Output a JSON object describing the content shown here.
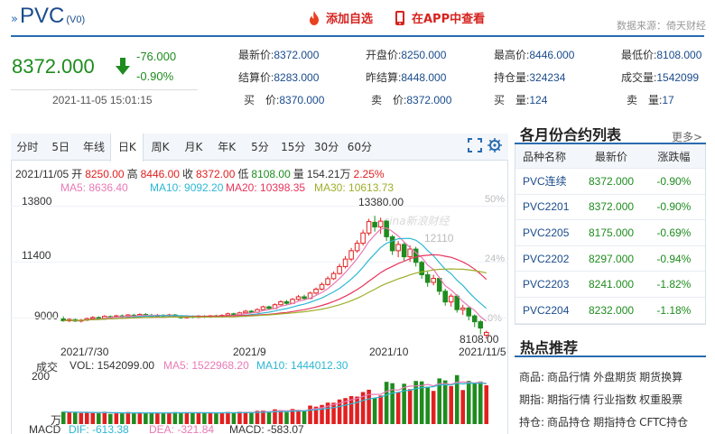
{
  "header": {
    "title": "PVC",
    "title_sub": "(V0)",
    "add_watch_label": "添加自选",
    "app_label": "在APP中查看",
    "source": "数据来源：倚天财经"
  },
  "quote": {
    "price": "8372.000",
    "change": "-76.000",
    "change_pct": "-0.90%",
    "datetime": "2021-11-05 15:01:15",
    "cells": [
      {
        "label": "最新价:",
        "value": "8372.000"
      },
      {
        "label": "开盘价:",
        "value": "8250.000"
      },
      {
        "label": "最高价:",
        "value": "8446.000"
      },
      {
        "label": "最低价:",
        "value": "8108.000"
      },
      {
        "label": "结算价:",
        "value": "8283.000"
      },
      {
        "label": "昨结算:",
        "value": "8448.000"
      },
      {
        "label": "持仓量:",
        "value": "324234"
      },
      {
        "label": "成交量:",
        "value": "1542099"
      },
      {
        "label": "买　价:",
        "value": "8370.000"
      },
      {
        "label": "卖　价:",
        "value": "8372.000"
      },
      {
        "label": "买　量:",
        "value": "124"
      },
      {
        "label": "卖　量:",
        "value": "17"
      }
    ]
  },
  "tabs": [
    "分时",
    "5日",
    "年线",
    "日K",
    "周K",
    "月K",
    "年K",
    "5分",
    "15分",
    "30分",
    "60分"
  ],
  "chart_info": {
    "date": "2021/11/05",
    "open_label": "开",
    "open": "8250.00",
    "high_label": "高",
    "high": "8446.00",
    "close_label": "收",
    "close": "8372.00",
    "low_label": "低",
    "low": "8108.00",
    "vol_label": "量",
    "vol": "154.21万",
    "pct": "2.25%",
    "ma5": "MA5: 8636.40",
    "ma10": "MA10: 9092.20",
    "ma20": "MA20: 10398.35",
    "ma30": "MA30: 10613.73",
    "y_ticks": [
      "13800",
      "11400",
      "9000"
    ],
    "pct_ticks": [
      "50%",
      "24%",
      "0%"
    ],
    "high_mark": "13380.00",
    "low_mark": "8108.00",
    "mid_mark": "12110",
    "watermark": "sina新浪财经",
    "dates": [
      "2021/7/30",
      "2021/9",
      "2021/10",
      "2021/11/5"
    ],
    "vol_row": {
      "label": "成交",
      "vol": "VOL: 1542099.00",
      "ma5": "MA5: 1522968.20",
      "ma10": "MA10: 1444012.30"
    },
    "vol_ticks": [
      "200",
      "万"
    ],
    "macd_row": {
      "label": "MACD",
      "dif": "DIF: -613.38",
      "dea": "DEA: -321.84",
      "macd": "MACD: -583.07"
    }
  },
  "chart_data": {
    "type": "candlestick",
    "ylim": [
      8000,
      14200
    ],
    "candles": [
      [
        8950,
        8870,
        9060,
        8830
      ],
      [
        8870,
        8930,
        8980,
        8810
      ],
      [
        8920,
        8860,
        8970,
        8820
      ],
      [
        8860,
        8900,
        8950,
        8800
      ],
      [
        8900,
        8960,
        9010,
        8860
      ],
      [
        8960,
        9010,
        9070,
        8920
      ],
      [
        9010,
        8980,
        9060,
        8930
      ],
      [
        8980,
        9060,
        9110,
        8940
      ],
      [
        9050,
        9040,
        9100,
        8990
      ],
      [
        9040,
        9080,
        9130,
        9000
      ],
      [
        9080,
        9050,
        9140,
        9010
      ],
      [
        9050,
        9120,
        9160,
        9020
      ],
      [
        9110,
        9080,
        9170,
        9040
      ],
      [
        9080,
        9140,
        9190,
        9050
      ],
      [
        9140,
        9110,
        9200,
        9070
      ],
      [
        9110,
        9060,
        9170,
        9020
      ],
      [
        9060,
        9110,
        9160,
        9010
      ],
      [
        9110,
        9080,
        9150,
        9040
      ],
      [
        9080,
        9120,
        9170,
        9040
      ],
      [
        9120,
        9050,
        9160,
        9010
      ],
      [
        9050,
        9000,
        9090,
        8960
      ],
      [
        9000,
        9060,
        9110,
        8970
      ],
      [
        9060,
        9020,
        9100,
        8980
      ],
      [
        9020,
        9070,
        9120,
        8980
      ],
      [
        9070,
        9030,
        9110,
        8990
      ],
      [
        9030,
        9080,
        9120,
        9000
      ],
      [
        9080,
        9050,
        9130,
        9010
      ],
      [
        9050,
        9100,
        9150,
        9010
      ],
      [
        9100,
        9170,
        9220,
        9060
      ],
      [
        9170,
        9130,
        9220,
        9080
      ],
      [
        9130,
        9210,
        9260,
        9100
      ],
      [
        9210,
        9280,
        9340,
        9180
      ],
      [
        9280,
        9240,
        9330,
        9190
      ],
      [
        9240,
        9350,
        9410,
        9200
      ],
      [
        9350,
        9470,
        9520,
        9300
      ],
      [
        9470,
        9400,
        9520,
        9350
      ],
      [
        9400,
        9560,
        9620,
        9370
      ],
      [
        9560,
        9690,
        9750,
        9520
      ],
      [
        9690,
        9620,
        9760,
        9560
      ],
      [
        9620,
        9790,
        9850,
        9600
      ],
      [
        9790,
        9900,
        9980,
        9740
      ],
      [
        9900,
        9830,
        9990,
        9780
      ],
      [
        9830,
        10060,
        10120,
        9800
      ],
      [
        10060,
        10230,
        10300,
        10000
      ],
      [
        10230,
        10430,
        10520,
        10180
      ],
      [
        10430,
        10680,
        10780,
        10380
      ],
      [
        10680,
        10900,
        10990,
        10620
      ],
      [
        10900,
        11200,
        11320,
        10850
      ],
      [
        11200,
        11520,
        11650,
        11120
      ],
      [
        11520,
        11880,
        12000,
        11430
      ],
      [
        11880,
        12200,
        12330,
        11790
      ],
      [
        12200,
        12640,
        12780,
        12110
      ],
      [
        12640,
        13130,
        13250,
        12530
      ],
      [
        13100,
        12900,
        13380,
        12700
      ],
      [
        12900,
        13150,
        13300,
        12600
      ],
      [
        13150,
        12480,
        13200,
        12300
      ],
      [
        12480,
        11880,
        12560,
        11700
      ],
      [
        11880,
        12150,
        12300,
        11600
      ],
      [
        12150,
        11620,
        12250,
        11450
      ],
      [
        11620,
        11950,
        12110,
        11400
      ],
      [
        11950,
        11380,
        12050,
        11200
      ],
      [
        11380,
        10850,
        11450,
        10680
      ],
      [
        10850,
        10520,
        10980,
        10330
      ],
      [
        10520,
        10690,
        10850,
        10390
      ],
      [
        10690,
        10140,
        10760,
        9980
      ],
      [
        10140,
        9680,
        10250,
        9520
      ],
      [
        9680,
        9930,
        10030,
        9480
      ],
      [
        9930,
        9350,
        10010,
        9220
      ],
      [
        9350,
        9420,
        9560,
        9120
      ],
      [
        9420,
        9080,
        9500,
        8890
      ],
      [
        9080,
        8830,
        9150,
        8600
      ],
      [
        8830,
        8560,
        8910,
        8300
      ],
      [
        8250,
        8372,
        8446,
        8108
      ]
    ],
    "vol_ylim": [
      0,
      220
    ]
  }
}
